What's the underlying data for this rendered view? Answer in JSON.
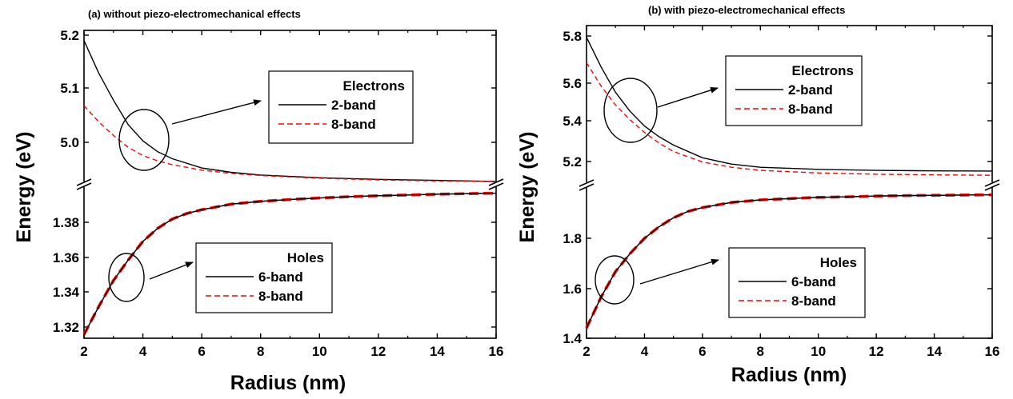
{
  "chart_data": [
    {
      "type": "line",
      "panel_title": "(a) without piezo-electromechanical effects",
      "xlabel": "Radius (nm)",
      "ylabel": "Energy (eV)",
      "xlim": [
        2,
        16
      ],
      "x_ticks": [
        "2",
        "4",
        "6",
        "8",
        "10",
        "12",
        "14",
        "16"
      ],
      "broken_y_axis": true,
      "grid": false,
      "upper": {
        "ylim": [
          4.93,
          5.2
        ],
        "y_ticks": [
          "5.2",
          "5.1",
          "5.0"
        ],
        "legend_title": "Electrons",
        "legend_position": "top-right",
        "series": [
          {
            "name": "2-band",
            "color": "#000000",
            "style": "solid",
            "x": [
              2,
              2.5,
              3,
              3.5,
              4,
              4.5,
              5,
              6,
              7,
              8,
              10,
              12,
              14,
              16
            ],
            "y": [
              5.19,
              5.13,
              5.08,
              5.035,
              5.005,
              4.985,
              4.972,
              4.955,
              4.947,
              4.942,
              4.937,
              4.934,
              4.932,
              4.93
            ]
          },
          {
            "name": "8-band",
            "color": "#ff0000",
            "style": "dashed",
            "x": [
              2,
              2.5,
              3,
              3.5,
              4,
              4.5,
              5,
              6,
              7,
              8,
              10,
              12,
              14,
              16
            ],
            "y": [
              5.07,
              5.04,
              5.015,
              4.993,
              4.978,
              4.968,
              4.961,
              4.951,
              4.945,
              4.941,
              4.936,
              4.933,
              4.931,
              4.93
            ]
          }
        ]
      },
      "lower": {
        "ylim": [
          1.31,
          1.392
        ],
        "y_ticks": [
          "1.38",
          "1.36",
          "1.34",
          "1.32"
        ],
        "legend_title": "Holes",
        "legend_position": "bottom-right",
        "series": [
          {
            "name": "6-band",
            "color": "#000000",
            "style": "solid",
            "x": [
              2,
              2.5,
              3,
              3.5,
              4,
              4.5,
              5,
              5.5,
              6,
              7,
              8,
              9,
              10,
              11,
              12,
              13,
              14,
              15,
              16
            ],
            "y": [
              1.312,
              1.327,
              1.341,
              1.352,
              1.362,
              1.369,
              1.374,
              1.377,
              1.379,
              1.382,
              1.3835,
              1.3845,
              1.3853,
              1.386,
              1.3865,
              1.3869,
              1.3873,
              1.3876,
              1.3879
            ]
          },
          {
            "name": "8-band",
            "color": "#ff0000",
            "style": "dashed",
            "x": [
              2,
              2.5,
              3,
              3.5,
              4,
              4.5,
              5,
              5.5,
              6,
              7,
              8,
              9,
              10,
              11,
              12,
              13,
              14,
              15,
              16
            ],
            "y": [
              1.312,
              1.327,
              1.341,
              1.352,
              1.362,
              1.369,
              1.374,
              1.377,
              1.379,
              1.382,
              1.3835,
              1.3845,
              1.3853,
              1.386,
              1.3865,
              1.3869,
              1.3873,
              1.3876,
              1.3879
            ]
          }
        ]
      }
    },
    {
      "type": "line",
      "panel_title": "(b) with piezo-electromechanical effects",
      "xlabel": "Radius (nm)",
      "ylabel": "Energy (eV)",
      "xlim": [
        2,
        16
      ],
      "x_ticks": [
        "2",
        "4",
        "6",
        "8",
        "10",
        "12",
        "14",
        "16"
      ],
      "broken_y_axis": true,
      "grid": false,
      "upper": {
        "ylim": [
          5.1,
          5.8
        ],
        "y_ticks": [
          "5.8",
          "5.6",
          "5.4",
          "5.2"
        ],
        "legend_title": "Electrons",
        "legend_position": "top-right",
        "series": [
          {
            "name": "2-band",
            "color": "#000000",
            "style": "solid",
            "x": [
              2,
              2.5,
              3,
              3.5,
              4,
              4.5,
              5,
              6,
              7,
              8,
              10,
              12,
              14,
              16
            ],
            "y": [
              5.79,
              5.65,
              5.53,
              5.44,
              5.37,
              5.32,
              5.28,
              5.22,
              5.19,
              5.175,
              5.165,
              5.16,
              5.158,
              5.157
            ]
          },
          {
            "name": "8-band",
            "color": "#ff0000",
            "style": "dashed",
            "x": [
              2,
              2.5,
              3,
              3.5,
              4,
              4.5,
              5,
              6,
              7,
              8,
              10,
              12,
              14,
              16
            ],
            "y": [
              5.67,
              5.56,
              5.47,
              5.4,
              5.34,
              5.29,
              5.25,
              5.2,
              5.175,
              5.16,
              5.148,
              5.142,
              5.139,
              5.137
            ]
          }
        ]
      },
      "lower": {
        "ylim": [
          1.4,
          1.99
        ],
        "y_ticks": [
          "1.8",
          "1.6",
          "1.4"
        ],
        "legend_title": "Holes",
        "legend_position": "bottom-right",
        "series": [
          {
            "name": "6-band",
            "color": "#000000",
            "style": "solid",
            "x": [
              2,
              2.5,
              3,
              3.5,
              4,
              4.5,
              5,
              5.5,
              6,
              7,
              8,
              9,
              10,
              11,
              12,
              13,
              14,
              15,
              16
            ],
            "y": [
              1.44,
              1.56,
              1.66,
              1.73,
              1.79,
              1.835,
              1.87,
              1.895,
              1.91,
              1.93,
              1.94,
              1.945,
              1.95,
              1.952,
              1.955,
              1.957,
              1.958,
              1.959,
              1.96
            ]
          },
          {
            "name": "8-band",
            "color": "#ff0000",
            "style": "dashed",
            "x": [
              2,
              2.5,
              3,
              3.5,
              4,
              4.5,
              5,
              5.5,
              6,
              7,
              8,
              9,
              10,
              11,
              12,
              13,
              14,
              15,
              16
            ],
            "y": [
              1.44,
              1.56,
              1.66,
              1.73,
              1.79,
              1.835,
              1.87,
              1.895,
              1.91,
              1.93,
              1.94,
              1.945,
              1.95,
              1.952,
              1.955,
              1.957,
              1.958,
              1.959,
              1.96
            ]
          }
        ]
      }
    }
  ]
}
